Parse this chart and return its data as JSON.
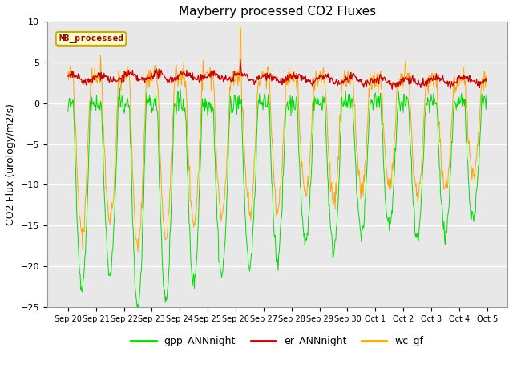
{
  "title": "Mayberry processed CO2 Fluxes",
  "ylabel": "CO2 Flux (urology/m2/s)",
  "ylim": [
    -25,
    10
  ],
  "yticks": [
    -25,
    -20,
    -15,
    -10,
    -5,
    0,
    5,
    10
  ],
  "xlabel_dates": [
    "Sep 20",
    "Sep 21",
    "Sep 22",
    "Sep 23",
    "Sep 24",
    "Sep 25",
    "Sep 26",
    "Sep 27",
    "Sep 28",
    "Sep 29",
    "Sep 30",
    "Oct 1",
    "Oct 2",
    "Oct 3",
    "Oct 4",
    "Oct 5"
  ],
  "legend_label": "MB_processed",
  "line_colors": {
    "gpp": "#00dd00",
    "er": "#cc0000",
    "wc": "#ffa500"
  },
  "legend_entries": [
    "gpp_ANNnight",
    "er_ANNnight",
    "wc_gf"
  ],
  "background_color": "#ffffff",
  "plot_bg_color": "#e8e8e8",
  "legend_box_facecolor": "#ffffcc",
  "legend_box_edgecolor": "#ccaa00",
  "title_fontsize": 11,
  "axis_fontsize": 9,
  "tick_fontsize": 8,
  "n_points": 720,
  "n_days": 15
}
